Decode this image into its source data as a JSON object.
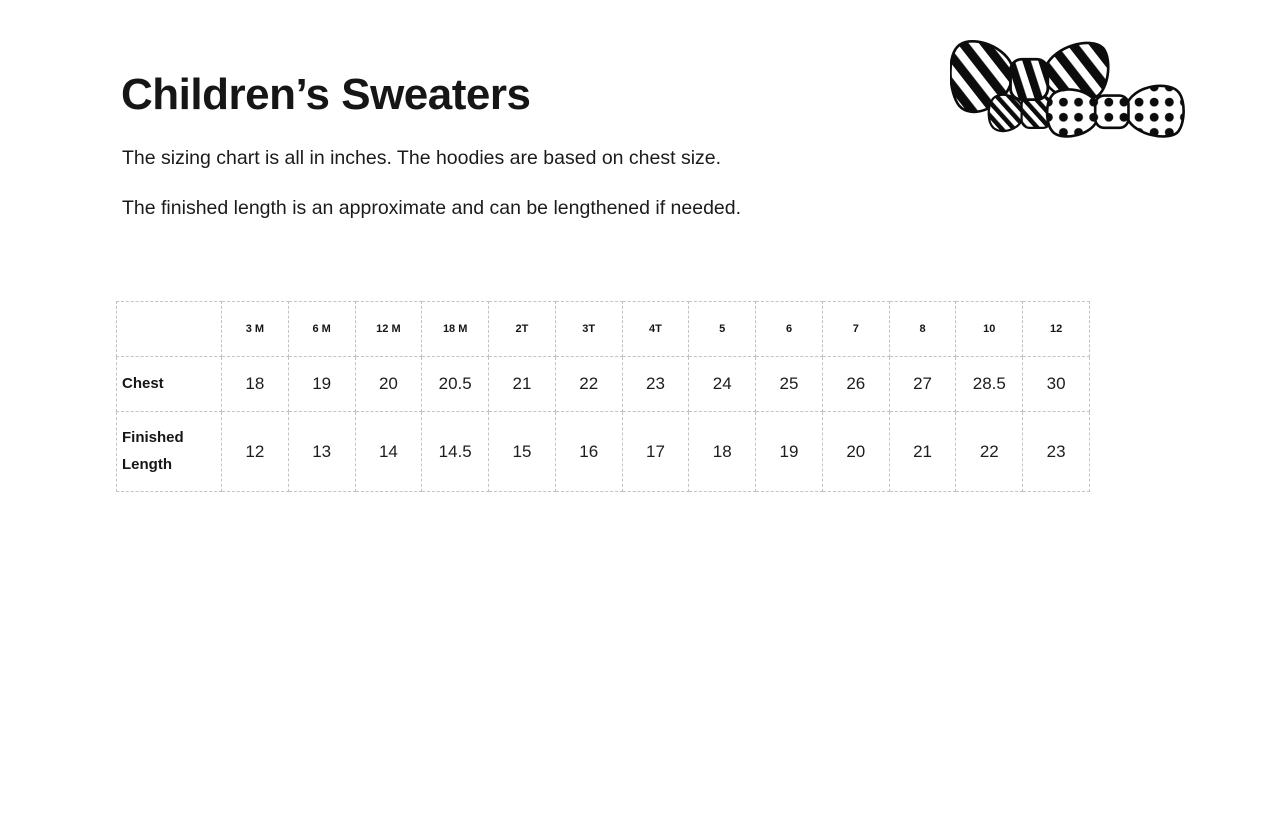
{
  "page": {
    "title": "Children’s Sweaters",
    "subtitle_line1": "The sizing chart is all in inches. The hoodies are based on chest size.",
    "subtitle_line2": "The finished length is an approximate and can be lengthened if needed."
  },
  "logo": {
    "description": "three-bow-ties-graphic",
    "styles": [
      "wide-diagonal-stripes",
      "fine-diagonal-stripes",
      "polka-dots"
    ],
    "colors": {
      "ink": "#0c0c0c",
      "background": "#ffffff"
    }
  },
  "table": {
    "corner_label": "",
    "col_headers": [
      "3 M",
      "6 M",
      "12 M",
      "18 M",
      "2T",
      "3T",
      "4T",
      "5",
      "6",
      "7",
      "8",
      "10",
      "12"
    ],
    "rows": [
      {
        "label": "Chest",
        "values": [
          "18",
          "19",
          "20",
          "20.5",
          "21",
          "22",
          "23",
          "24",
          "25",
          "26",
          "27",
          "28.5",
          "30"
        ]
      },
      {
        "label": "Finished Length",
        "values": [
          "12",
          "13",
          "14",
          "14.5",
          "15",
          "16",
          "17",
          "18",
          "19",
          "20",
          "21",
          "22",
          "23"
        ]
      }
    ]
  },
  "chart_data": {
    "type": "table",
    "title": "Children’s Sweaters",
    "units": "inches",
    "categories": [
      "3 M",
      "6 M",
      "12 M",
      "18 M",
      "2T",
      "3T",
      "4T",
      "5",
      "6",
      "7",
      "8",
      "10",
      "12"
    ],
    "series": [
      {
        "name": "Chest",
        "values": [
          18,
          19,
          20,
          20.5,
          21,
          22,
          23,
          24,
          25,
          26,
          27,
          28.5,
          30
        ]
      },
      {
        "name": "Finished Length",
        "values": [
          12,
          13,
          14,
          14.5,
          15,
          16,
          17,
          18,
          19,
          20,
          21,
          22,
          23
        ]
      }
    ]
  },
  "colors": {
    "text": "#1a1a1a",
    "table_border": "#c3c3c3",
    "background": "#ffffff"
  }
}
